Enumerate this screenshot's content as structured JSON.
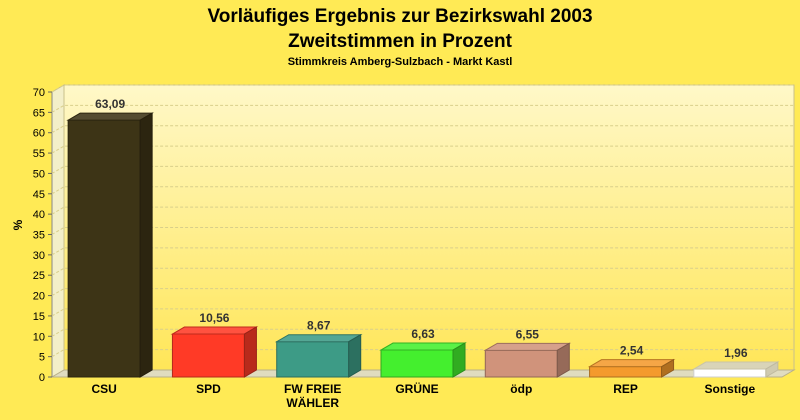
{
  "chart_data": {
    "type": "bar",
    "title": "Vorläufiges Ergebnis zur Bezirkswahl 2003",
    "subtitle": "Zweitstimmen in Prozent",
    "subsubtitle": "Stimmkreis Amberg-Sulzbach - Markt Kastl",
    "ylabel": "%",
    "xlabel": "",
    "ylim": [
      0,
      70
    ],
    "yticks": [
      0,
      5,
      10,
      15,
      20,
      25,
      30,
      35,
      40,
      45,
      50,
      55,
      60,
      65,
      70
    ],
    "grid": true,
    "legend": "none",
    "categories": [
      "CSU",
      "SPD",
      "FW FREIE WÄHLER",
      "GRÜNE",
      "ödp",
      "REP",
      "Sonstige"
    ],
    "category_lines": [
      [
        "CSU"
      ],
      [
        "SPD"
      ],
      [
        "FW FREIE",
        "WÄHLER"
      ],
      [
        "GRÜNE"
      ],
      [
        "ödp"
      ],
      [
        "REP"
      ],
      [
        "Sonstige"
      ]
    ],
    "values": [
      63.09,
      10.56,
      8.67,
      6.63,
      6.55,
      2.54,
      1.96
    ],
    "value_labels": [
      "63,09",
      "10,56",
      "8,67",
      "6,63",
      "6,55",
      "2,54",
      "1,96"
    ],
    "colors": [
      "#3d3416",
      "#ff3a26",
      "#3d9b86",
      "#44ef2e",
      "#d0937b",
      "#f49a2d",
      "#ffffff"
    ]
  }
}
